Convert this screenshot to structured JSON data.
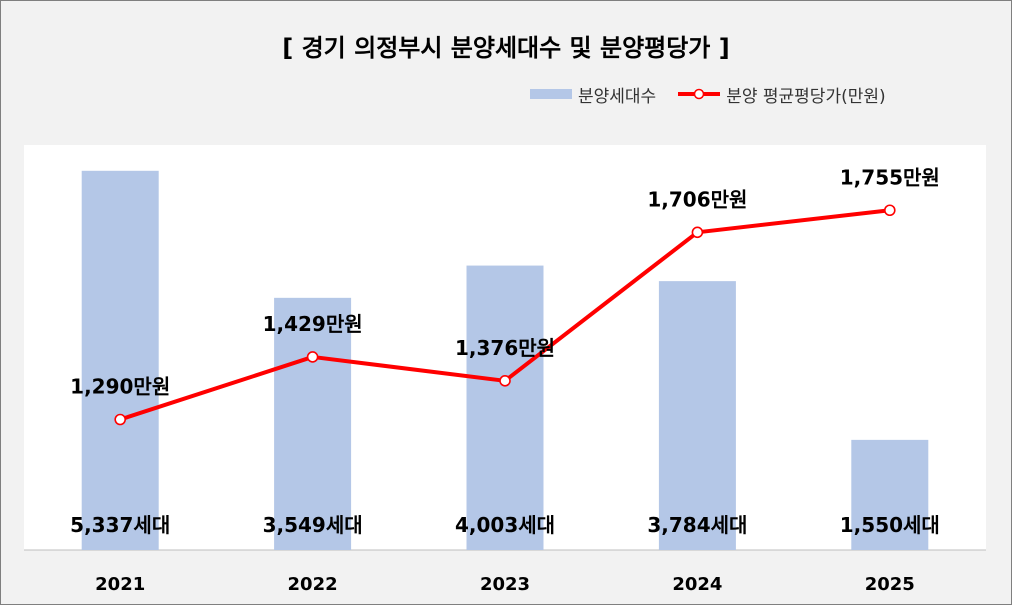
{
  "chart_data": {
    "type": "bar+line",
    "title": "[ 경기 의정부시 분양세대수 및 분양평당가 ]",
    "categories": [
      "2021",
      "2022",
      "2023",
      "2024",
      "2025"
    ],
    "series": [
      {
        "name": "분양세대수",
        "type": "bar",
        "values": [
          5337,
          3549,
          4003,
          3784,
          1550
        ],
        "labels": [
          "5,337세대",
          "3,549세대",
          "4,003세대",
          "3,784세대",
          "1,550세대"
        ],
        "color": "#b4c7e7"
      },
      {
        "name": "분양 평균평당가(만원)",
        "type": "line",
        "values": [
          1290,
          1429,
          1376,
          1706,
          1755
        ],
        "labels": [
          "1,290만원",
          "1,429만원",
          "1,376만원",
          "1,706만원",
          "1,755만원"
        ],
        "color": "#ff0000"
      }
    ],
    "bar_axis_range": [
      0,
      5700
    ],
    "line_axis_range": [
      1000,
      1900
    ],
    "legend_position": "top-right",
    "grid": false
  }
}
